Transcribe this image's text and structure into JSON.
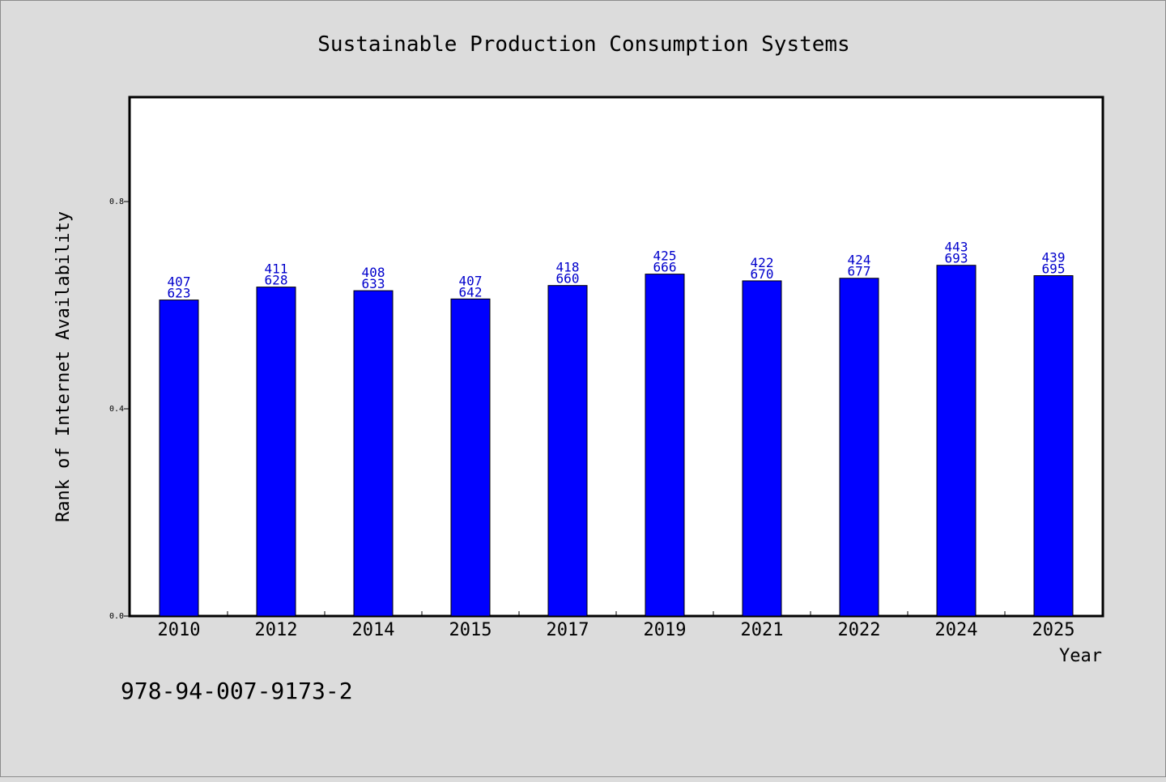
{
  "chart_data": {
    "type": "bar",
    "title": "Sustainable Production Consumption Systems",
    "xlabel": "Year",
    "ylabel": "Rank of Internet Availability",
    "categories": [
      "2010",
      "2012",
      "2014",
      "2015",
      "2017",
      "2019",
      "2021",
      "2022",
      "2024",
      "2025"
    ],
    "values": [
      0.61,
      0.635,
      0.628,
      0.612,
      0.638,
      0.66,
      0.647,
      0.652,
      0.677,
      0.657
    ],
    "bar_labels_top": [
      "407",
      "411",
      "408",
      "407",
      "418",
      "425",
      "422",
      "424",
      "443",
      "439"
    ],
    "bar_labels_bottom": [
      "623",
      "628",
      "633",
      "642",
      "660",
      "666",
      "670",
      "677",
      "693",
      "695"
    ],
    "ylim": [
      0.0,
      1.0
    ],
    "yticks": [
      0.0,
      0.4,
      0.8
    ],
    "ytick_labels": [
      "0.0",
      "0.4",
      "0.8"
    ],
    "grid": false,
    "legend": "none",
    "colors": {
      "bar": "#0000ff",
      "bar_label": "#0000cc",
      "background": "#dcdcdc",
      "plot_background": "#ffffff"
    }
  },
  "footnote": "978-94-007-9173-2"
}
